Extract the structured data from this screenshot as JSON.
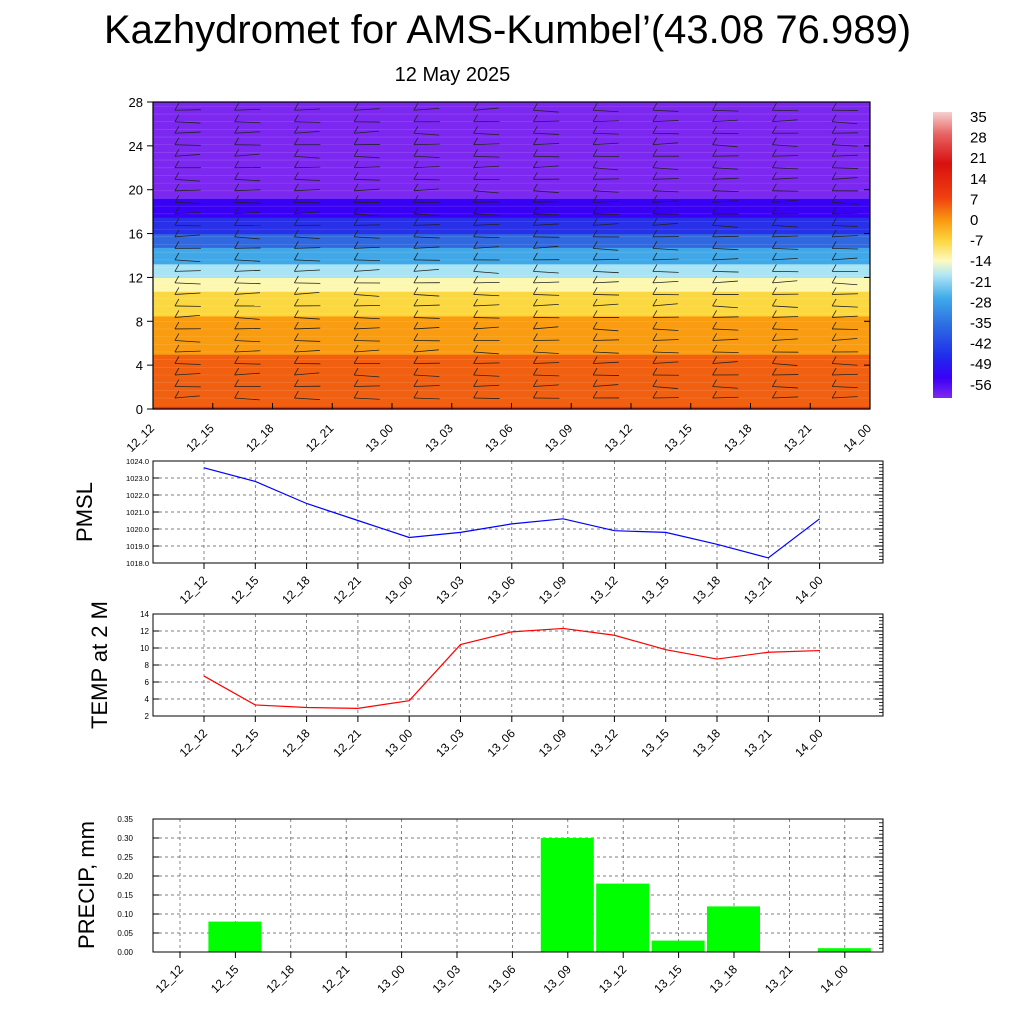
{
  "title": "Kazhydromet for AMS-Kumbel’(43.08 76.989)",
  "subtitle": "12 May 2025",
  "time_labels": [
    "12_12",
    "12_15",
    "12_18",
    "12_21",
    "13_00",
    "13_03",
    "13_06",
    "13_09",
    "13_12",
    "13_15",
    "13_18",
    "13_21",
    "14_00"
  ],
  "chart_data": [
    {
      "type": "heatmap",
      "title": "",
      "ylabel": "",
      "ylim": [
        0,
        28
      ],
      "yticks": [
        "0",
        "4",
        "8",
        "12",
        "16",
        "20",
        "24",
        "28"
      ],
      "colorbar": {
        "labels": [
          "35",
          "28",
          "21",
          "14",
          "7",
          "0",
          "-7",
          "-14",
          "-21",
          "-28",
          "-35",
          "-42",
          "-49",
          "-56"
        ],
        "colors": [
          "#f4c0c0",
          "#e86868",
          "#d41818",
          "#e83018",
          "#f06010",
          "#fa9c10",
          "#fcd840",
          "#fdf8b0",
          "#a8e4f4",
          "#40a8e8",
          "#3068e0",
          "#2830e8",
          "#3800f4",
          "#7c28f0"
        ]
      },
      "temperature_profile": {
        "heights": [
          0,
          2,
          4,
          6,
          8,
          10,
          11,
          12,
          14,
          16,
          18,
          20,
          22,
          24,
          28
        ],
        "temps": [
          11,
          8,
          5,
          2,
          -2,
          -7,
          -12,
          -18,
          -28,
          -38,
          -48,
          -56,
          -58,
          -60,
          -62
        ]
      },
      "wind_barbs": "present"
    },
    {
      "type": "line",
      "ylabel": "PMSL",
      "ylim": [
        1018.0,
        1024.0
      ],
      "yticks": [
        "1018.0",
        "1019.0",
        "1020.0",
        "1021.0",
        "1022.0",
        "1023.0",
        "1024.0"
      ],
      "series": [
        {
          "color": "#0000ff",
          "values": [
            1023.6,
            1022.8,
            1021.5,
            1020.5,
            1019.5,
            1019.8,
            1020.3,
            1020.6,
            1019.9,
            1019.8,
            1019.1,
            1018.3,
            1020.6
          ]
        }
      ]
    },
    {
      "type": "line",
      "ylabel": "TEMP at 2 M",
      "ylim": [
        2,
        14
      ],
      "yticks": [
        "2",
        "4",
        "6",
        "8",
        "10",
        "12",
        "14"
      ],
      "series": [
        {
          "color": "#ff0000",
          "values": [
            6.7,
            3.3,
            3.0,
            2.9,
            3.8,
            10.4,
            11.9,
            12.3,
            11.5,
            9.8,
            8.7,
            9.5,
            9.7
          ]
        }
      ]
    },
    {
      "type": "bar",
      "ylabel": "PRECIP, mm",
      "ylim": [
        0,
        0.35
      ],
      "yticks": [
        "0.00",
        "0.05",
        "0.10",
        "0.15",
        "0.20",
        "0.25",
        "0.30",
        "0.35"
      ],
      "bar_color": "#00ff00",
      "values": [
        0,
        0.08,
        0,
        0,
        0,
        0,
        0,
        0.3,
        0.18,
        0.03,
        0.12,
        0,
        0.01
      ]
    }
  ]
}
